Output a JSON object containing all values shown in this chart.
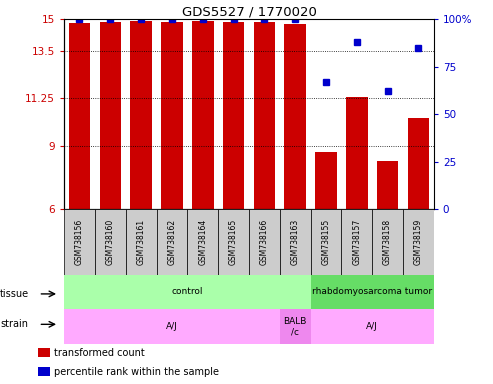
{
  "title": "GDS5527 / 1770020",
  "samples": [
    "GSM738156",
    "GSM738160",
    "GSM738161",
    "GSM738162",
    "GSM738164",
    "GSM738165",
    "GSM738166",
    "GSM738163",
    "GSM738155",
    "GSM738157",
    "GSM738158",
    "GSM738159"
  ],
  "transformed_counts": [
    14.8,
    14.85,
    14.9,
    14.85,
    14.9,
    14.85,
    14.85,
    14.75,
    8.7,
    11.3,
    8.3,
    10.3
  ],
  "percentile_ranks": [
    100,
    100,
    100,
    100,
    100,
    100,
    100,
    100,
    67,
    88,
    62,
    85
  ],
  "ymin": 6,
  "ymax": 15,
  "yticks": [
    6,
    9,
    11.25,
    13.5,
    15
  ],
  "ytick_labels": [
    "6",
    "9",
    "11.25",
    "13.5",
    "15"
  ],
  "right_yticks": [
    0,
    25,
    50,
    75,
    100
  ],
  "right_ytick_labels": [
    "0",
    "25",
    "50",
    "75",
    "100%"
  ],
  "tissue_labels": [
    {
      "label": "control",
      "start": 0,
      "end": 7,
      "color": "#aaffaa"
    },
    {
      "label": "rhabdomyosarcoma tumor",
      "start": 8,
      "end": 11,
      "color": "#66dd66"
    }
  ],
  "strain_labels": [
    {
      "label": "A/J",
      "start": 0,
      "end": 6,
      "color": "#ffaaff"
    },
    {
      "label": "BALB\n/c",
      "start": 7,
      "end": 7,
      "color": "#ee88ee"
    },
    {
      "label": "A/J",
      "start": 8,
      "end": 11,
      "color": "#ffaaff"
    }
  ],
  "bar_color": "#cc0000",
  "dot_color": "#0000cc",
  "bar_bottom": 6,
  "sample_box_color": "#cccccc",
  "tick_label_color_left": "#cc0000",
  "tick_label_color_right": "#0000cc",
  "legend_items": [
    {
      "color": "#cc0000",
      "label": "transformed count"
    },
    {
      "color": "#0000cc",
      "label": "percentile rank within the sample"
    }
  ]
}
